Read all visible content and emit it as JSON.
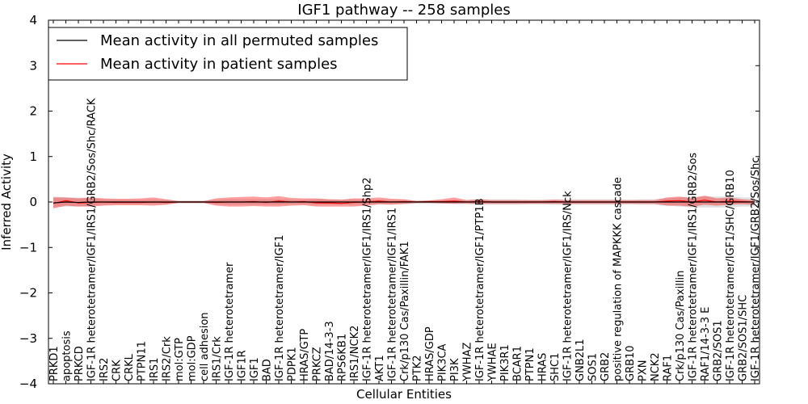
{
  "chart_data": {
    "type": "line",
    "title": "IGF1 pathway -- 258 samples",
    "xlabel": "Cellular Entities",
    "ylabel": "Inferred Activity",
    "ylim": [
      -4,
      4
    ],
    "yticks": [
      -4,
      -3,
      -2,
      -1,
      0,
      1,
      2,
      3,
      4
    ],
    "ytick_labels": [
      "−4",
      "−3",
      "−2",
      "−1",
      "0",
      "1",
      "2",
      "3",
      "4"
    ],
    "legend_position": "top-left",
    "categories": [
      "PRKD1",
      "apoptosis",
      "PRKCD",
      "IGF-1R heterotetramer/IGF1/IRS1/GRB2/Sos/Shc/RACK",
      "IRS2",
      "CRK",
      "CRKL",
      "PTPN11",
      "IRS1",
      "IRS2/Crk",
      "mol:GTP",
      "mol:GDP",
      "cell adhesion",
      "IRS1/Crk",
      "IGF-1R heterotetramer",
      "IGF1R",
      "IGF1",
      "BAD",
      "IGF-1R heterotetramer/IGF1",
      "PDPK1",
      "HRAS/GTP",
      "PRKCZ",
      "BAD/14-3-3",
      "RPS6KB1",
      "IRS1/NCK2",
      "IGF-1R heterotetramer/IGF1/IRS1/Shp2",
      "AKT1",
      "IGF-1R heterotetramer/IGF1/IRS1",
      "Crk/p130 Cas/Paxillin/FAK1",
      "PTK2",
      "HRAS/GDP",
      "PIK3CA",
      "PI3K",
      "YWHAZ",
      "IGF-1R heterotetramer/IGF1/PTP1B",
      "YWHAE",
      "PIK3R1",
      "BCAR1",
      "PTPN1",
      "HRAS",
      "SHC1",
      "IGF-1R heterotetramer/IGF1/IRS/Nck",
      "GNB2L1",
      "SOS1",
      "GRB2",
      "positive regulation of MAPKKK cascade",
      "GRB10",
      "PXN",
      "NCK2",
      "RAF1",
      "Crk/p130 Cas/Paxillin",
      "IGF-1R heterotetramer/IGF1/IRS1/GRB2/Sos",
      "RAF1/14-3-3 E",
      "GRB2/SOS1",
      "IGF-1R heterotetramer/IGF1/SHC/GRB10",
      "GRB2/SOS1/SHC",
      "IGF-1R heterotetramer/IGF1/GRB2/Sos/Shc"
    ],
    "series": [
      {
        "name": "Mean activity in all permuted samples",
        "color": "#000000",
        "values": [
          -0.02,
          0.0,
          -0.01,
          0.0,
          0.0,
          0.0,
          0.0,
          0.0,
          0.0,
          0.0,
          0.0,
          0.0,
          0.0,
          0.0,
          0.0,
          0.0,
          0.0,
          0.0,
          0.0,
          0.0,
          0.0,
          0.0,
          0.0,
          0.0,
          0.0,
          0.0,
          0.0,
          0.0,
          0.0,
          0.0,
          0.0,
          0.0,
          0.0,
          0.0,
          0.0,
          0.0,
          0.0,
          0.0,
          0.0,
          0.0,
          0.0,
          0.0,
          0.0,
          0.0,
          0.0,
          0.0,
          0.0,
          0.0,
          0.0,
          0.0,
          0.0,
          0.0,
          0.0,
          0.0,
          0.0,
          0.0,
          0.0
        ],
        "band_low": [
          -0.12,
          -0.1,
          -0.1,
          -0.08,
          -0.06,
          -0.05,
          -0.05,
          -0.05,
          -0.05,
          -0.05,
          -0.03,
          -0.03,
          -0.03,
          -0.05,
          -0.06,
          -0.06,
          -0.06,
          -0.06,
          -0.06,
          -0.05,
          -0.05,
          -0.06,
          -0.06,
          -0.06,
          -0.06,
          -0.05,
          -0.05,
          -0.05,
          -0.05,
          -0.04,
          -0.04,
          -0.04,
          -0.04,
          -0.05,
          -0.06,
          -0.06,
          -0.06,
          -0.06,
          -0.05,
          -0.05,
          -0.06,
          -0.06,
          -0.06,
          -0.06,
          -0.06,
          -0.06,
          -0.05,
          -0.06,
          -0.06,
          -0.08,
          -0.1,
          -0.12,
          -0.12,
          -0.12,
          -0.12,
          -0.1,
          -0.1
        ],
        "band_high": [
          0.12,
          0.1,
          0.1,
          0.08,
          0.06,
          0.05,
          0.05,
          0.05,
          0.05,
          0.05,
          0.03,
          0.03,
          0.03,
          0.05,
          0.06,
          0.06,
          0.06,
          0.06,
          0.06,
          0.05,
          0.05,
          0.06,
          0.06,
          0.06,
          0.06,
          0.05,
          0.05,
          0.05,
          0.05,
          0.04,
          0.04,
          0.04,
          0.04,
          0.05,
          0.06,
          0.06,
          0.06,
          0.06,
          0.05,
          0.05,
          0.06,
          0.06,
          0.06,
          0.06,
          0.06,
          0.06,
          0.05,
          0.06,
          0.06,
          0.08,
          0.1,
          0.12,
          0.12,
          0.12,
          0.12,
          0.1,
          0.1
        ]
      },
      {
        "name": "Mean activity in patient samples",
        "color": "#ff0000",
        "values": [
          -0.03,
          0.03,
          -0.02,
          -0.01,
          0.0,
          -0.01,
          -0.01,
          -0.01,
          0.0,
          -0.01,
          0.0,
          0.0,
          0.0,
          -0.01,
          0.0,
          0.0,
          0.01,
          -0.01,
          0.02,
          0.0,
          0.01,
          -0.02,
          -0.02,
          -0.03,
          -0.01,
          0.0,
          0.02,
          0.0,
          0.01,
          0.0,
          0.01,
          0.01,
          0.02,
          0.0,
          0.01,
          0.0,
          0.0,
          0.0,
          0.0,
          0.0,
          0.01,
          0.0,
          0.0,
          0.0,
          0.0,
          0.0,
          0.0,
          0.0,
          0.0,
          0.02,
          0.03,
          0.0,
          0.04,
          0.0,
          0.02,
          0.01,
          0.0
        ],
        "band_low": [
          -0.14,
          -0.08,
          -0.1,
          -0.1,
          -0.08,
          -0.07,
          -0.07,
          -0.07,
          -0.08,
          -0.06,
          -0.02,
          -0.02,
          -0.02,
          -0.08,
          -0.1,
          -0.1,
          -0.09,
          -0.1,
          -0.1,
          -0.08,
          -0.07,
          -0.1,
          -0.1,
          -0.1,
          -0.1,
          -0.08,
          -0.05,
          -0.06,
          -0.04,
          -0.02,
          -0.02,
          -0.03,
          -0.04,
          -0.03,
          -0.04,
          -0.04,
          -0.04,
          -0.04,
          -0.04,
          -0.04,
          -0.04,
          -0.04,
          -0.04,
          -0.04,
          -0.04,
          -0.04,
          -0.04,
          -0.04,
          -0.04,
          -0.08,
          -0.08,
          -0.1,
          -0.06,
          -0.08,
          -0.06,
          -0.05,
          -0.06
        ],
        "band_high": [
          0.1,
          0.1,
          0.08,
          0.1,
          0.08,
          0.07,
          0.07,
          0.08,
          0.1,
          0.06,
          0.02,
          0.02,
          0.02,
          0.08,
          0.1,
          0.11,
          0.12,
          0.1,
          0.13,
          0.09,
          0.08,
          0.08,
          0.06,
          0.05,
          0.08,
          0.08,
          0.1,
          0.07,
          0.06,
          0.02,
          0.03,
          0.06,
          0.1,
          0.04,
          0.06,
          0.04,
          0.04,
          0.04,
          0.04,
          0.04,
          0.05,
          0.04,
          0.04,
          0.04,
          0.04,
          0.04,
          0.04,
          0.04,
          0.04,
          0.1,
          0.12,
          0.08,
          0.14,
          0.08,
          0.1,
          0.06,
          0.04
        ]
      }
    ]
  }
}
